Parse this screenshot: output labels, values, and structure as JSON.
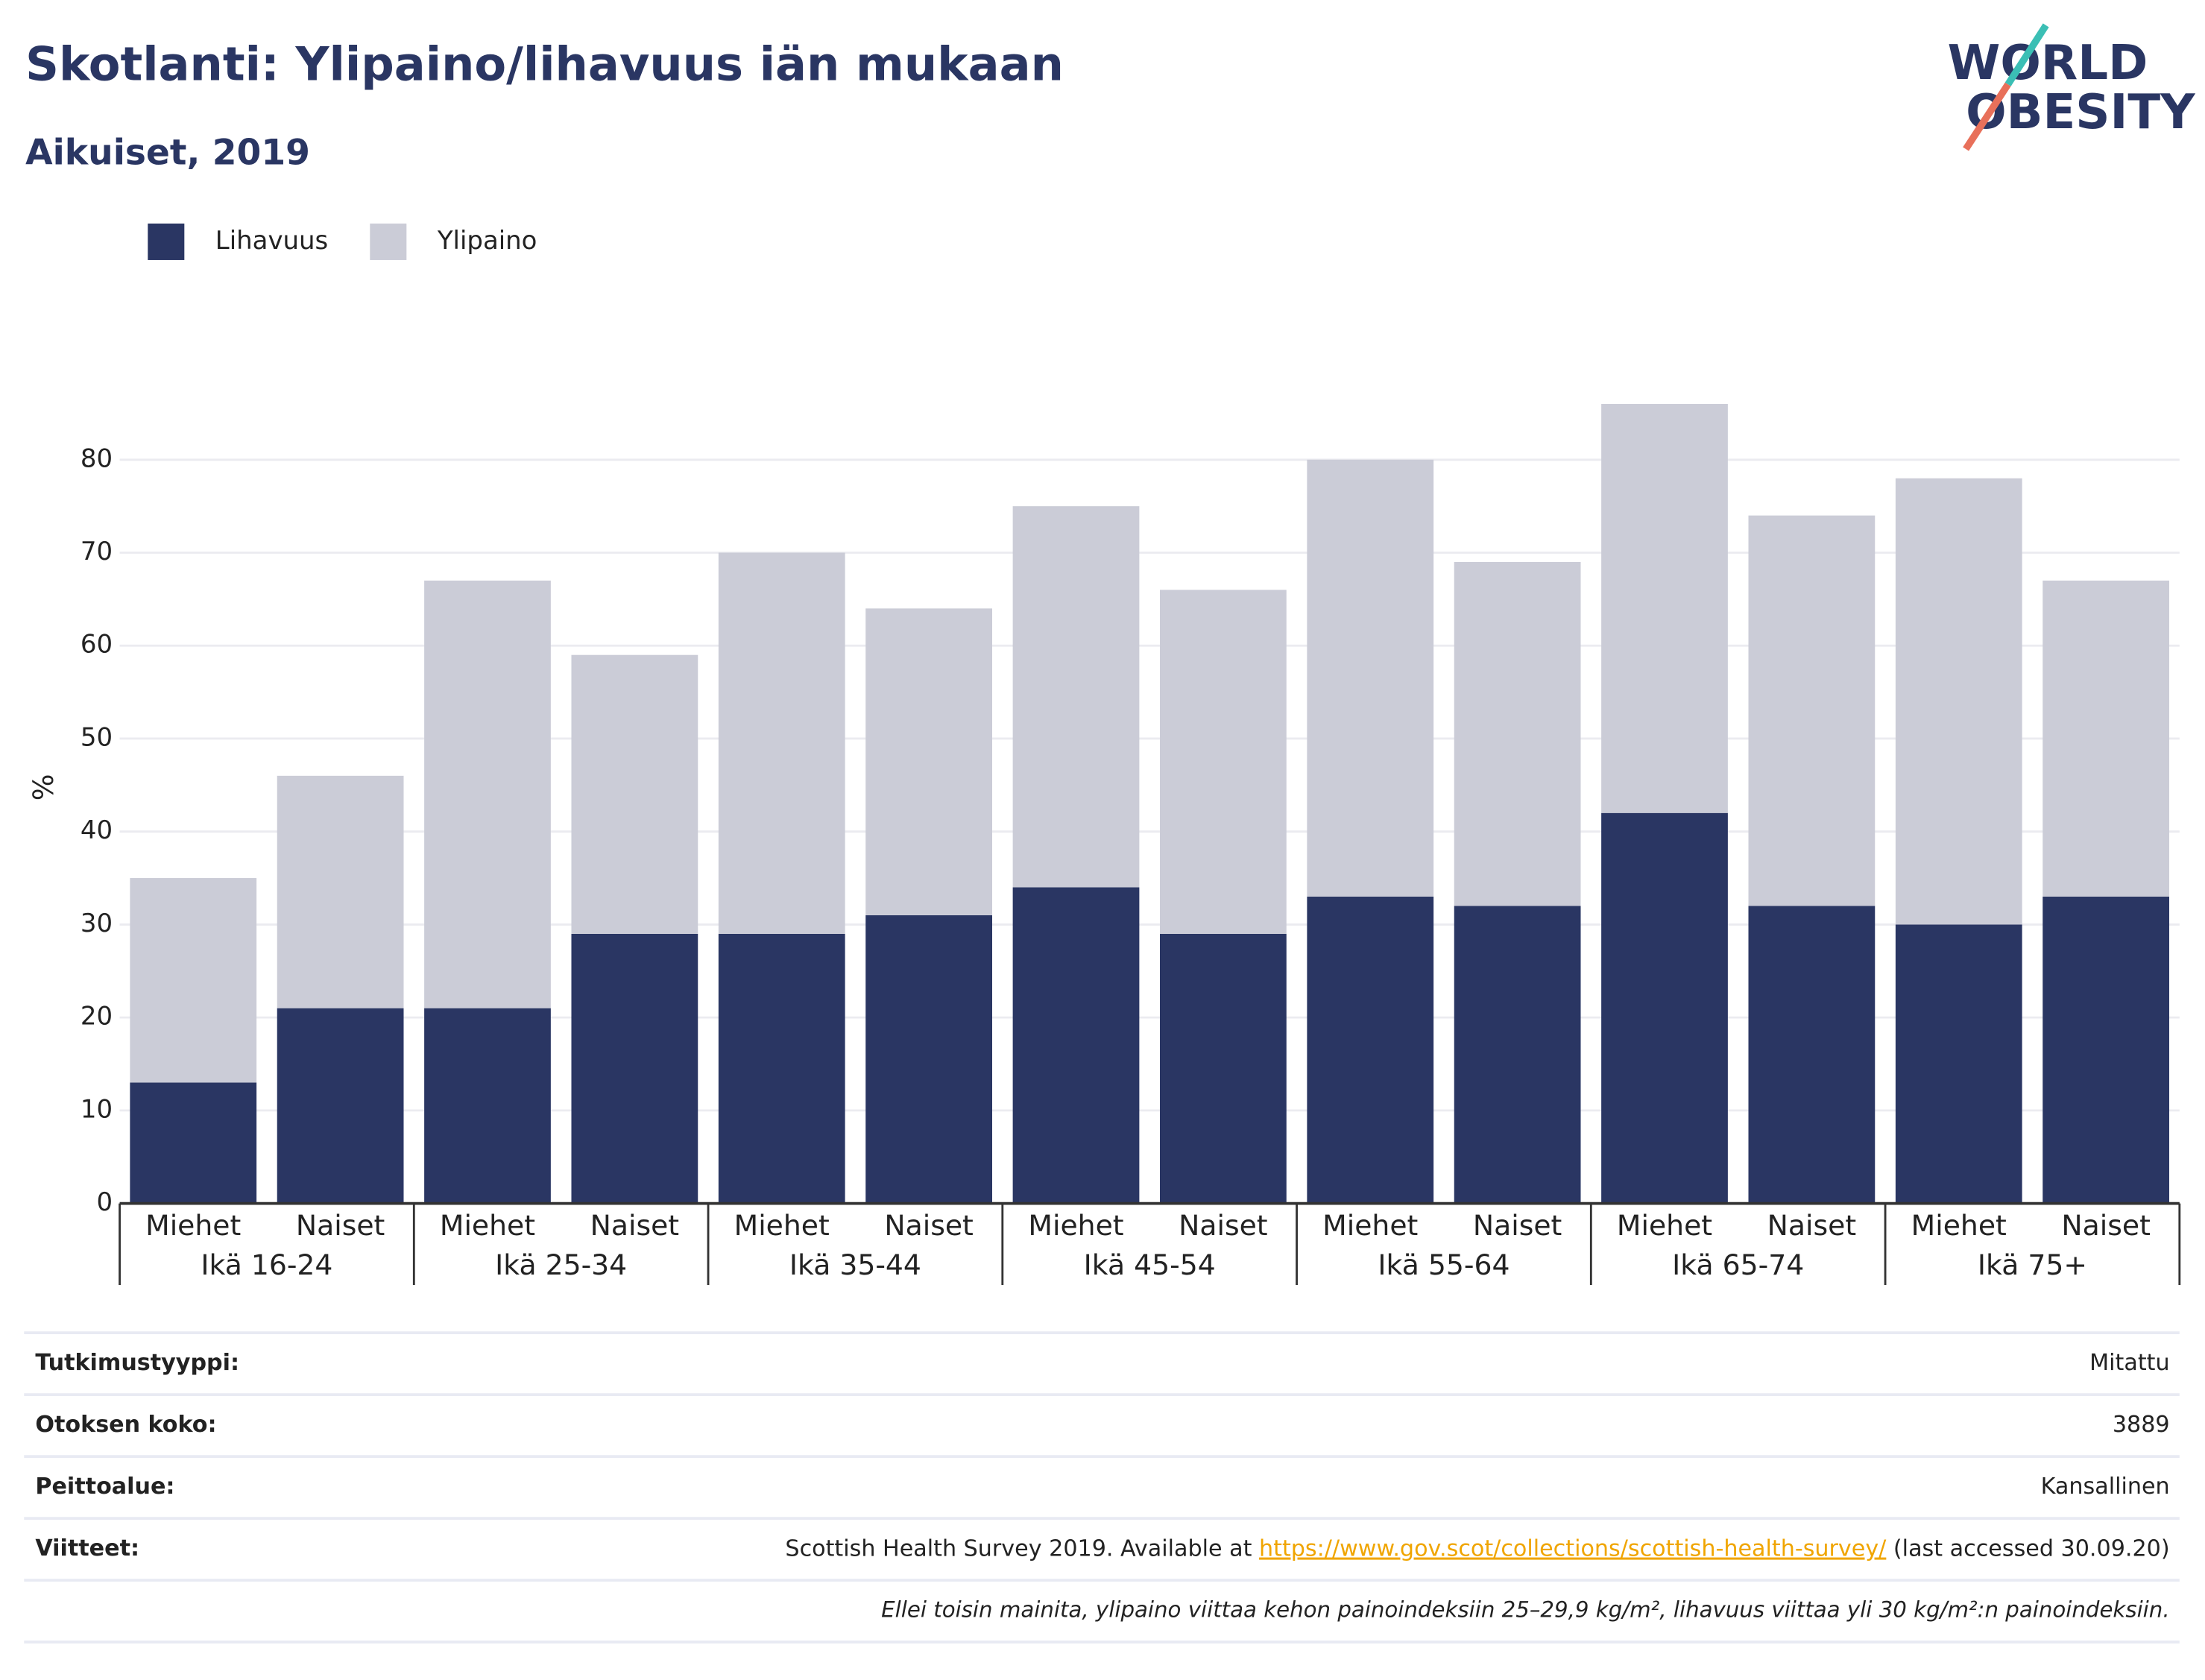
{
  "chart_data": {
    "type": "stacked_bar",
    "title": "Skotlanti: Ylipaino/lihavuus iän mukaan",
    "subtitle": "Aikuiset, 2019",
    "y_label": "%",
    "categories": [
      "Miehet",
      "Naiset",
      "Miehet",
      "Naiset",
      "Miehet",
      "Naiset",
      "Miehet",
      "Naiset",
      "Miehet",
      "Naiset",
      "Miehet",
      "Naiset",
      "Miehet",
      "Naiset"
    ],
    "groups": [
      "Ikä 16-24",
      "Ikä 25-34",
      "Ikä 35-44",
      "Ikä 45-54",
      "Ikä 55-64",
      "Ikä 65-74",
      "Ikä 75+"
    ],
    "series": [
      {
        "name": "Lihavuus",
        "color": "#2a3663",
        "values": [
          13,
          21,
          21,
          29,
          29,
          31,
          34,
          29,
          33,
          32,
          42,
          32,
          30,
          33
        ]
      },
      {
        "name": "Ylipaino",
        "color": "#cbccd7",
        "values": [
          22,
          25,
          46,
          30,
          41,
          33,
          41,
          37,
          47,
          37,
          44,
          42,
          48,
          34
        ]
      }
    ],
    "ylim": [
      0,
      86
    ],
    "yticks": [
      0,
      10,
      20,
      30,
      40,
      50,
      60,
      70,
      80
    ],
    "grid": true,
    "legend": "top-left"
  },
  "logo": {
    "line1": "WORLD",
    "line2": "OBESITY"
  },
  "table": {
    "rows": [
      [
        "Tutkimustyyppi:",
        "Mitattu"
      ],
      [
        "Otoksen koko:",
        "3889"
      ],
      [
        "Peittoalue:",
        "Kansallinen"
      ]
    ],
    "references": {
      "label": "Viitteet:",
      "before": "Scottish Health Survey 2019. Available at ",
      "link": "https://www.gov.scot/collections/scottish-health-survey/",
      "after": " (last accessed 30.09.20)"
    },
    "note": "Ellei toisin mainita, ylipaino viittaa kehon painoindeksiin 25–29,9 kg/m², lihavuus viittaa yli 30 kg/m²:n painoindeksiin."
  }
}
